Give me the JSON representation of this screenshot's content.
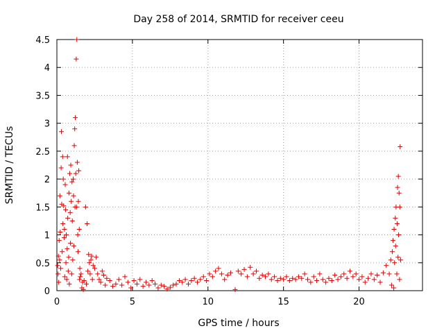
{
  "chart_data": {
    "type": "scatter",
    "title": "Day 258 of 2014, SRMTID for receiver ceeu",
    "xlabel": "GPS time / hours",
    "ylabel": "SRMTID / TECUs",
    "xlim": [
      0,
      24.2
    ],
    "ylim": [
      0,
      4.5
    ],
    "x_ticks": [
      0,
      5,
      10,
      15,
      20
    ],
    "y_ticks": [
      0,
      0.5,
      1,
      1.5,
      2,
      2.5,
      3,
      3.5,
      4,
      4.5
    ],
    "x_tick_labels": [
      "0",
      "5",
      "10",
      "15",
      "20"
    ],
    "y_tick_labels": [
      "0",
      "0.5",
      "1",
      "1.5",
      "2",
      "2.5",
      "3",
      "3.5",
      "4",
      "4.5"
    ],
    "grid": true,
    "marker": "plus",
    "color": "#e00000",
    "series": [
      {
        "name": "SRMTID",
        "points": [
          [
            0.05,
            0.45
          ],
          [
            0.08,
            0.3
          ],
          [
            0.1,
            0.62
          ],
          [
            0.12,
            0.15
          ],
          [
            0.15,
            0.9
          ],
          [
            0.18,
            0.55
          ],
          [
            0.2,
            1.7
          ],
          [
            0.22,
            1.05
          ],
          [
            0.25,
            0.4
          ],
          [
            0.28,
            2.2
          ],
          [
            0.3,
            2.85
          ],
          [
            0.32,
            1.55
          ],
          [
            0.35,
            0.7
          ],
          [
            0.38,
            2.4
          ],
          [
            0.4,
            1.2
          ],
          [
            0.42,
            2.0
          ],
          [
            0.45,
            1.52
          ],
          [
            0.48,
            0.95
          ],
          [
            0.5,
            1.1
          ],
          [
            0.52,
            0.25
          ],
          [
            0.55,
            1.9
          ],
          [
            0.58,
            1.45
          ],
          [
            0.6,
            0.5
          ],
          [
            0.62,
            1.0
          ],
          [
            0.65,
            0.2
          ],
          [
            0.68,
            0.75
          ],
          [
            0.7,
            2.4
          ],
          [
            0.72,
            1.3
          ],
          [
            0.75,
            0.35
          ],
          [
            0.78,
            0.6
          ],
          [
            0.8,
            1.75
          ],
          [
            0.82,
            0.12
          ],
          [
            0.85,
            2.1
          ],
          [
            0.88,
            1.4
          ],
          [
            0.9,
            0.85
          ],
          [
            0.92,
            2.25
          ],
          [
            0.95,
            1.6
          ],
          [
            0.98,
            0.3
          ],
          [
            1.0,
            1.95
          ],
          [
            1.02,
            1.25
          ],
          [
            1.05,
            0.55
          ],
          [
            1.08,
            2.0
          ],
          [
            1.1,
            1.7
          ],
          [
            1.12,
            0.8
          ],
          [
            1.15,
            2.6
          ],
          [
            1.18,
            2.9
          ],
          [
            1.2,
            1.5
          ],
          [
            1.22,
            3.1
          ],
          [
            1.25,
            2.1
          ],
          [
            1.28,
            4.15
          ],
          [
            1.3,
            1.5
          ],
          [
            1.32,
            4.5
          ],
          [
            1.35,
            2.3
          ],
          [
            1.38,
            1.0
          ],
          [
            1.4,
            0.7
          ],
          [
            1.42,
            1.6
          ],
          [
            1.45,
            2.15
          ],
          [
            1.48,
            1.1
          ],
          [
            1.5,
            0.2
          ],
          [
            1.52,
            0.4
          ],
          [
            1.55,
            0.25
          ],
          [
            1.6,
            0.3
          ],
          [
            1.65,
            0.05
          ],
          [
            1.7,
            0.15
          ],
          [
            1.75,
            0.02
          ],
          [
            1.8,
            0.18
          ],
          [
            1.9,
            1.5
          ],
          [
            1.95,
            0.12
          ],
          [
            2.0,
            1.2
          ],
          [
            2.05,
            0.35
          ],
          [
            2.1,
            0.65
          ],
          [
            2.15,
            0.5
          ],
          [
            2.2,
            0.3
          ],
          [
            2.25,
            0.55
          ],
          [
            2.3,
            0.62
          ],
          [
            2.35,
            0.2
          ],
          [
            2.4,
            0.45
          ],
          [
            2.5,
            0.4
          ],
          [
            2.6,
            0.6
          ],
          [
            2.7,
            0.3
          ],
          [
            2.8,
            0.2
          ],
          [
            2.9,
            0.15
          ],
          [
            3.0,
            0.35
          ],
          [
            3.1,
            0.28
          ],
          [
            3.2,
            0.1
          ],
          [
            3.3,
            0.22
          ],
          [
            3.5,
            0.18
          ],
          [
            3.7,
            0.08
          ],
          [
            3.9,
            0.12
          ],
          [
            4.1,
            0.2
          ],
          [
            4.3,
            0.1
          ],
          [
            4.5,
            0.25
          ],
          [
            4.7,
            0.15
          ],
          [
            4.9,
            0.05
          ],
          [
            5.1,
            0.18
          ],
          [
            5.3,
            0.12
          ],
          [
            5.5,
            0.2
          ],
          [
            5.7,
            0.08
          ],
          [
            5.9,
            0.15
          ],
          [
            6.1,
            0.1
          ],
          [
            6.3,
            0.18
          ],
          [
            6.5,
            0.12
          ],
          [
            6.7,
            0.05
          ],
          [
            6.9,
            0.1
          ],
          [
            7.1,
            0.08
          ],
          [
            7.3,
            0.03
          ],
          [
            7.5,
            0.06
          ],
          [
            7.7,
            0.1
          ],
          [
            7.9,
            0.12
          ],
          [
            8.1,
            0.18
          ],
          [
            8.3,
            0.15
          ],
          [
            8.5,
            0.2
          ],
          [
            8.7,
            0.12
          ],
          [
            8.9,
            0.18
          ],
          [
            9.1,
            0.22
          ],
          [
            9.3,
            0.15
          ],
          [
            9.5,
            0.2
          ],
          [
            9.7,
            0.25
          ],
          [
            9.9,
            0.18
          ],
          [
            10.1,
            0.3
          ],
          [
            10.3,
            0.25
          ],
          [
            10.5,
            0.35
          ],
          [
            10.7,
            0.4
          ],
          [
            10.9,
            0.3
          ],
          [
            11.1,
            0.2
          ],
          [
            11.3,
            0.28
          ],
          [
            11.5,
            0.32
          ],
          [
            11.8,
            0.02
          ],
          [
            12.0,
            0.35
          ],
          [
            12.2,
            0.3
          ],
          [
            12.4,
            0.38
          ],
          [
            12.6,
            0.25
          ],
          [
            12.8,
            0.42
          ],
          [
            13.0,
            0.3
          ],
          [
            13.2,
            0.35
          ],
          [
            13.4,
            0.22
          ],
          [
            13.6,
            0.28
          ],
          [
            13.8,
            0.25
          ],
          [
            14.0,
            0.3
          ],
          [
            14.2,
            0.2
          ],
          [
            14.4,
            0.25
          ],
          [
            14.6,
            0.18
          ],
          [
            14.8,
            0.22
          ],
          [
            15.0,
            0.2
          ],
          [
            15.2,
            0.25
          ],
          [
            15.4,
            0.18
          ],
          [
            15.6,
            0.22
          ],
          [
            15.8,
            0.2
          ],
          [
            16.0,
            0.25
          ],
          [
            16.2,
            0.22
          ],
          [
            16.4,
            0.3
          ],
          [
            16.6,
            0.2
          ],
          [
            16.8,
            0.15
          ],
          [
            17.0,
            0.25
          ],
          [
            17.2,
            0.18
          ],
          [
            17.4,
            0.3
          ],
          [
            17.6,
            0.2
          ],
          [
            17.8,
            0.15
          ],
          [
            18.0,
            0.22
          ],
          [
            18.2,
            0.18
          ],
          [
            18.4,
            0.28
          ],
          [
            18.6,
            0.2
          ],
          [
            18.8,
            0.25
          ],
          [
            19.0,
            0.3
          ],
          [
            19.2,
            0.22
          ],
          [
            19.4,
            0.35
          ],
          [
            19.6,
            0.25
          ],
          [
            19.8,
            0.3
          ],
          [
            20.0,
            0.2
          ],
          [
            20.2,
            0.25
          ],
          [
            20.4,
            0.15
          ],
          [
            20.6,
            0.22
          ],
          [
            20.8,
            0.3
          ],
          [
            21.0,
            0.2
          ],
          [
            21.2,
            0.28
          ],
          [
            21.4,
            0.15
          ],
          [
            21.6,
            0.32
          ],
          [
            21.8,
            0.45
          ],
          [
            22.0,
            0.3
          ],
          [
            22.1,
            0.55
          ],
          [
            22.15,
            0.1
          ],
          [
            22.2,
            0.7
          ],
          [
            22.25,
            0.9
          ],
          [
            22.3,
            0.05
          ],
          [
            22.32,
            1.1
          ],
          [
            22.35,
            0.5
          ],
          [
            22.4,
            1.3
          ],
          [
            22.42,
            0.8
          ],
          [
            22.45,
            1.5
          ],
          [
            22.5,
            0.3
          ],
          [
            22.52,
            1.2
          ],
          [
            22.55,
            1.85
          ],
          [
            22.58,
            0.6
          ],
          [
            22.6,
            2.05
          ],
          [
            22.62,
            1.0
          ],
          [
            22.65,
            1.75
          ],
          [
            22.68,
            0.2
          ],
          [
            22.7,
            1.5
          ],
          [
            22.72,
            2.58
          ],
          [
            22.75,
            0.55
          ]
        ]
      }
    ]
  }
}
